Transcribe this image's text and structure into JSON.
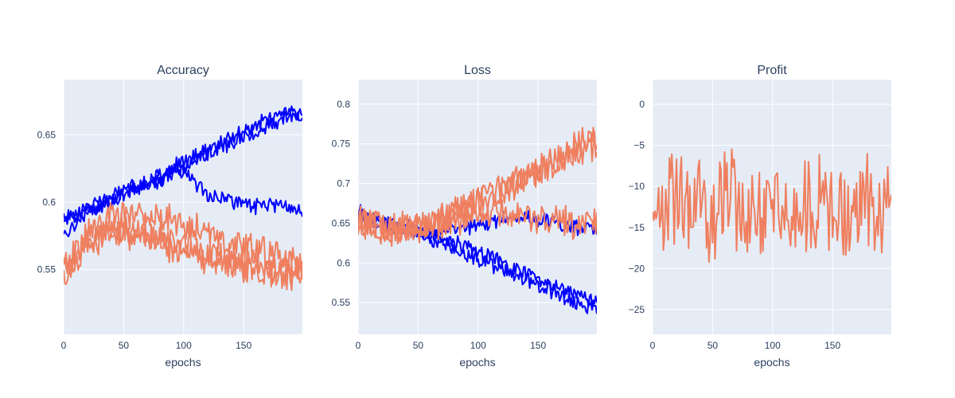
{
  "colors": {
    "blue": "#0000ff",
    "orange": "#ef7f5f",
    "panel_bg": "#e5ecf6",
    "text": "#2a3f5f"
  },
  "chart_data": [
    {
      "type": "line",
      "title": "Accuracy",
      "xlabel": "epochs",
      "ylabel": "",
      "xlim": [
        0,
        199
      ],
      "ylim": [
        0.502,
        0.691
      ],
      "xticks": [
        0,
        50,
        100,
        150
      ],
      "yticks": [
        0.55,
        0.6,
        0.65
      ],
      "ytick_labels": [
        "0.55",
        "0.6",
        "0.65"
      ],
      "grid": true,
      "legend": "none",
      "series": [
        {
          "color": "#0000ff",
          "x": [
            0,
            20,
            40,
            60,
            80,
            100,
            120,
            140,
            160,
            180,
            199
          ],
          "y": [
            0.575,
            0.593,
            0.601,
            0.609,
            0.616,
            0.626,
            0.637,
            0.644,
            0.652,
            0.66,
            0.665
          ]
        },
        {
          "color": "#0000ff",
          "x": [
            0,
            20,
            40,
            60,
            80,
            100,
            120,
            140,
            160,
            180,
            199
          ],
          "y": [
            0.59,
            0.594,
            0.604,
            0.612,
            0.62,
            0.63,
            0.64,
            0.648,
            0.658,
            0.666,
            0.668
          ]
        },
        {
          "color": "#0000ff",
          "x": [
            0,
            20,
            40,
            60,
            80,
            100,
            120,
            140,
            160,
            180,
            199
          ],
          "y": [
            0.585,
            0.596,
            0.602,
            0.611,
            0.617,
            0.624,
            0.605,
            0.6,
            0.597,
            0.598,
            0.594
          ]
        },
        {
          "color": "#ef7f5f",
          "x": [
            0,
            20,
            40,
            60,
            80,
            100,
            120,
            140,
            160,
            180,
            199
          ],
          "y": [
            0.55,
            0.575,
            0.59,
            0.592,
            0.59,
            0.585,
            0.578,
            0.57,
            0.565,
            0.56,
            0.555
          ]
        },
        {
          "color": "#ef7f5f",
          "x": [
            0,
            20,
            40,
            60,
            80,
            100,
            120,
            140,
            160,
            180,
            199
          ],
          "y": [
            0.545,
            0.568,
            0.578,
            0.575,
            0.57,
            0.562,
            0.558,
            0.553,
            0.55,
            0.548,
            0.545
          ]
        },
        {
          "color": "#ef7f5f",
          "x": [
            0,
            20,
            40,
            60,
            80,
            100,
            120,
            140,
            160,
            180,
            199
          ],
          "y": [
            0.555,
            0.572,
            0.58,
            0.578,
            0.574,
            0.568,
            0.562,
            0.556,
            0.552,
            0.55,
            0.548
          ]
        }
      ]
    },
    {
      "type": "line",
      "title": "Loss",
      "xlabel": "epochs",
      "ylabel": "",
      "xlim": [
        0,
        199
      ],
      "ylim": [
        0.51,
        0.831
      ],
      "xticks": [
        0,
        50,
        100,
        150
      ],
      "yticks": [
        0.55,
        0.6,
        0.65,
        0.7,
        0.75,
        0.8
      ],
      "ytick_labels": [
        "0.55",
        "0.6",
        "0.65",
        "0.7",
        "0.75",
        "0.8"
      ],
      "grid": true,
      "legend": "none",
      "series": [
        {
          "color": "#0000ff",
          "x": [
            0,
            20,
            40,
            60,
            80,
            100,
            120,
            140,
            160,
            180,
            199
          ],
          "y": [
            0.665,
            0.652,
            0.645,
            0.635,
            0.625,
            0.615,
            0.6,
            0.587,
            0.573,
            0.56,
            0.552
          ]
        },
        {
          "color": "#0000ff",
          "x": [
            0,
            20,
            40,
            60,
            80,
            100,
            120,
            140,
            160,
            180,
            199
          ],
          "y": [
            0.66,
            0.65,
            0.642,
            0.63,
            0.618,
            0.605,
            0.592,
            0.578,
            0.565,
            0.55,
            0.54
          ]
        },
        {
          "color": "#0000ff",
          "x": [
            0,
            20,
            40,
            60,
            80,
            100,
            120,
            140,
            160,
            180,
            199
          ],
          "y": [
            0.662,
            0.65,
            0.645,
            0.64,
            0.64,
            0.648,
            0.655,
            0.658,
            0.65,
            0.645,
            0.642
          ]
        },
        {
          "color": "#ef7f5f",
          "x": [
            0,
            20,
            40,
            60,
            80,
            100,
            120,
            140,
            160,
            180,
            199
          ],
          "y": [
            0.655,
            0.643,
            0.645,
            0.652,
            0.665,
            0.68,
            0.693,
            0.708,
            0.723,
            0.738,
            0.75
          ]
        },
        {
          "color": "#ef7f5f",
          "x": [
            0,
            20,
            40,
            60,
            80,
            100,
            120,
            140,
            160,
            180,
            199
          ],
          "y": [
            0.65,
            0.64,
            0.642,
            0.648,
            0.66,
            0.675,
            0.69,
            0.705,
            0.725,
            0.745,
            0.762
          ]
        },
        {
          "color": "#ef7f5f",
          "x": [
            0,
            20,
            40,
            60,
            80,
            100,
            120,
            140,
            160,
            180,
            199
          ],
          "y": [
            0.655,
            0.642,
            0.64,
            0.645,
            0.652,
            0.665,
            0.663,
            0.66,
            0.655,
            0.652,
            0.65
          ]
        }
      ]
    },
    {
      "type": "line",
      "title": "Profit",
      "xlabel": "epochs",
      "ylabel": "",
      "xlim": [
        0,
        199
      ],
      "ylim": [
        -28,
        3
      ],
      "xticks": [
        0,
        50,
        100,
        150
      ],
      "yticks": [
        0,
        -5,
        -10,
        -15,
        -20,
        -25
      ],
      "ytick_labels": [
        "0",
        "−5",
        "−10",
        "−15",
        "−20",
        "−25"
      ],
      "grid": true,
      "legend": "none",
      "series": [
        {
          "color": "#ef7f5f",
          "x": [
            0,
            10,
            20,
            30,
            40,
            50,
            60,
            70,
            80,
            90,
            100,
            110,
            120,
            130,
            140,
            150,
            160,
            170,
            180,
            190,
            199
          ],
          "y": [
            -12,
            -14,
            -11,
            -13,
            -12,
            -15,
            -10,
            -13,
            -14,
            -12,
            -13,
            -11,
            -14,
            -12,
            -13,
            -12,
            -14,
            -13,
            -12,
            -14,
            -11
          ]
        }
      ]
    }
  ]
}
